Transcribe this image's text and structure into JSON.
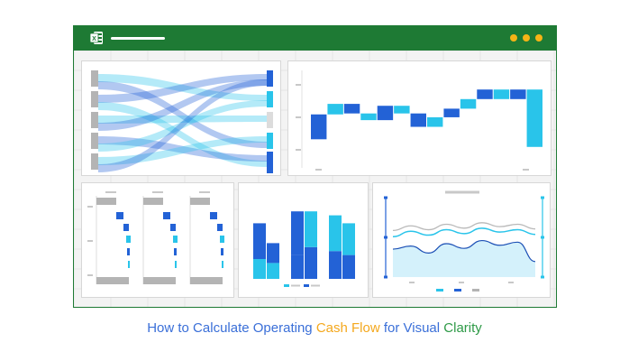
{
  "caption": {
    "part1": "How to Calculate Operating",
    "part2": "Cash Flow",
    "part3": "for Visual",
    "part4": "Clarity"
  },
  "window": {
    "app_icon": "excel-icon",
    "window_dots_color": "#f6b416",
    "title_bar_color": "#1e7a34"
  },
  "colors": {
    "caption_blue": "#3a6fd8",
    "caption_orange": "#f4a81d",
    "caption_green": "#2e9a47",
    "dark_blue": "#2362d6",
    "light_blue": "#29c4ea",
    "gray": "#b4b4b4"
  },
  "chart_data": [
    {
      "type": "sankey",
      "sources": 5,
      "targets": 5
    },
    {
      "type": "waterfall",
      "bars": [
        {
          "start": 2.8,
          "end": 5.4,
          "color": "dark"
        },
        {
          "start": 5.4,
          "end": 6.5,
          "color": "light"
        },
        {
          "start": 6.5,
          "end": 5.5,
          "color": "dark"
        },
        {
          "start": 5.5,
          "end": 4.8,
          "color": "light"
        },
        {
          "start": 4.8,
          "end": 6.3,
          "color": "dark"
        },
        {
          "start": 6.3,
          "end": 5.5,
          "color": "light"
        },
        {
          "start": 5.5,
          "end": 4.1,
          "color": "dark"
        },
        {
          "start": 4.1,
          "end": 5.1,
          "color": "light"
        },
        {
          "start": 5.1,
          "end": 6.0,
          "color": "dark"
        },
        {
          "start": 6.0,
          "end": 7.0,
          "color": "light"
        },
        {
          "start": 7.0,
          "end": 8.0,
          "color": "dark"
        },
        {
          "start": 8.0,
          "end": 7.0,
          "color": "light"
        },
        {
          "start": 7.0,
          "end": 8.0,
          "color": "dark"
        },
        {
          "start": 8.0,
          "end": 2.0,
          "color": "light"
        }
      ],
      "ylim": [
        0,
        10
      ]
    },
    {
      "type": "bar",
      "groups": [
        {
          "series": [
            [
              {
                "value": 2.5,
                "color": "light"
              },
              {
                "value": 4.5,
                "color": "dark"
              }
            ],
            [
              {
                "value": 2.0,
                "color": "light"
              },
              {
                "value": 2.5,
                "color": "dark"
              }
            ]
          ]
        },
        {
          "series": [
            [
              {
                "value": 3.0,
                "color": "dark"
              },
              {
                "value": 5.5,
                "color": "dark"
              }
            ],
            [
              {
                "value": 4.0,
                "color": "dark"
              },
              {
                "value": 4.5,
                "color": "light"
              }
            ]
          ]
        },
        {
          "series": [
            [
              {
                "value": 3.5,
                "color": "dark"
              },
              {
                "value": 4.5,
                "color": "light"
              }
            ],
            [
              {
                "value": 3.0,
                "color": "dark"
              },
              {
                "value": 4.0,
                "color": "light"
              }
            ]
          ]
        }
      ],
      "ylim": [
        0,
        10
      ]
    },
    {
      "type": "area",
      "x": [
        0,
        1,
        2,
        3,
        4,
        5,
        6,
        7,
        8
      ],
      "series": [
        {
          "values": [
            5.2,
            5.9,
            5.4,
            6.1,
            5.6,
            6.3,
            5.8,
            6.1,
            5.5
          ]
        },
        {
          "values": [
            6.0,
            6.6,
            6.1,
            6.8,
            6.3,
            7.0,
            6.5,
            6.8,
            6.2
          ]
        },
        {
          "values": [
            3.6,
            4.0,
            3.1,
            4.3,
            3.7,
            4.7,
            4.1,
            4.5,
            2.0
          ]
        }
      ],
      "ylim": [
        0,
        10
      ]
    }
  ]
}
